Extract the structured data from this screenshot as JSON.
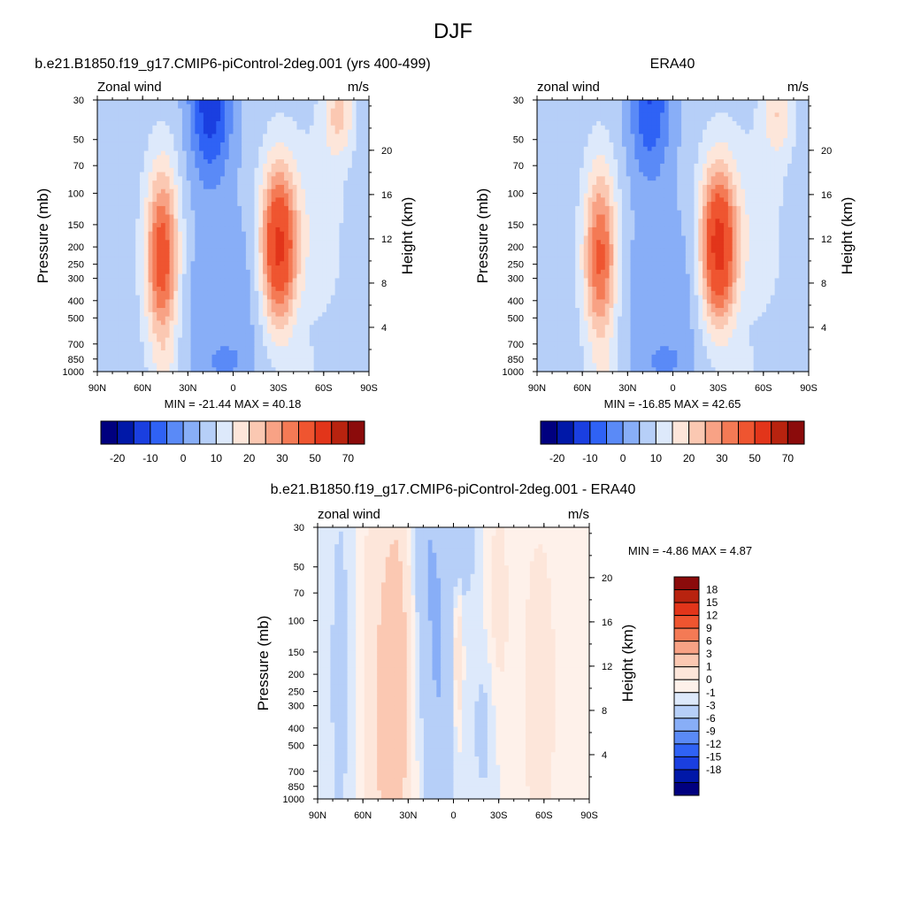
{
  "title": "DJF",
  "colors": {
    "levels": [
      "#00007f",
      "#0018a8",
      "#1a3fe0",
      "#2f62f5",
      "#5a8af7",
      "#88aef7",
      "#b6cff8",
      "#dde9fb",
      "#fde6da",
      "#fbc8b2",
      "#f8a285",
      "#f47a55",
      "#ef5530",
      "#e2351a",
      "#b8230f",
      "#8b0b0b"
    ],
    "diff_levels": [
      "#00007f",
      "#0018a8",
      "#1a3fe0",
      "#2f62f5",
      "#5a8af7",
      "#88aef7",
      "#b6cff8",
      "#dde9fb",
      "#fef1ea",
      "#fde6da",
      "#fbc8b2",
      "#f8a285",
      "#f47a55",
      "#ef5530",
      "#e2351a",
      "#b8230f",
      "#8b0b0b"
    ]
  },
  "chart_data": [
    {
      "type": "heatmap",
      "id": "model",
      "title": "b.e21.B1850.f19_g17.CMIP6-piControl-2deg.001 (yrs 400-499)",
      "left_label": "Zonal wind",
      "right_label": "m/s",
      "ylabel": "Pressure (mb)",
      "y2label": "Height (km)",
      "xticks": [
        "90N",
        "60N",
        "30N",
        "0",
        "30S",
        "60S",
        "90S"
      ],
      "yticks": [
        30,
        50,
        70,
        100,
        150,
        200,
        250,
        300,
        400,
        500,
        700,
        850,
        1000
      ],
      "y2ticks": [
        20,
        16,
        12,
        8,
        4
      ],
      "stats": "MIN = -21.44  MAX =  40.18",
      "min": -21.44,
      "max": 40.18,
      "colorbar_labels": [
        "-20",
        "-10",
        "0",
        "10",
        "20",
        "30",
        "50",
        "70"
      ],
      "jets": [
        {
          "lat": -30,
          "p": 200,
          "max": 40
        },
        {
          "lat": 47,
          "p": 230,
          "max": 33
        }
      ],
      "easterly": {
        "lat": 15,
        "p": 30,
        "min": -21
      }
    },
    {
      "type": "heatmap",
      "id": "era40",
      "title": "ERA40",
      "left_label": "zonal wind",
      "right_label": "m/s",
      "ylabel": "Pressure (mb)",
      "y2label": "Height (km)",
      "xticks": [
        "90N",
        "60N",
        "30N",
        "0",
        "30S",
        "60S",
        "90S"
      ],
      "yticks": [
        30,
        50,
        70,
        100,
        150,
        200,
        250,
        300,
        400,
        500,
        700,
        850,
        1000
      ],
      "y2ticks": [
        20,
        16,
        12,
        8,
        4
      ],
      "stats": "MIN = -16.85  MAX =  42.65",
      "min": -16.85,
      "max": 42.65,
      "colorbar_labels": [
        "-20",
        "-10",
        "0",
        "10",
        "20",
        "30",
        "50",
        "70"
      ],
      "jets": [
        {
          "lat": -30,
          "p": 200,
          "max": 42
        },
        {
          "lat": 48,
          "p": 230,
          "max": 30
        }
      ],
      "easterly": {
        "lat": 15,
        "p": 30,
        "min": -17
      }
    },
    {
      "type": "heatmap",
      "id": "diff",
      "title": "b.e21.B1850.f19_g17.CMIP6-piControl-2deg.001 - ERA40",
      "left_label": "zonal wind",
      "right_label": "m/s",
      "ylabel": "Pressure (mb)",
      "y2label": "Height (km)",
      "xticks": [
        "90N",
        "60N",
        "30N",
        "0",
        "30S",
        "60S",
        "90S"
      ],
      "yticks": [
        30,
        50,
        70,
        100,
        150,
        200,
        250,
        300,
        400,
        500,
        700,
        850,
        1000
      ],
      "y2ticks": [
        20,
        16,
        12,
        8,
        4
      ],
      "stats": "MIN =  -4.86  MAX =   4.87",
      "min": -4.86,
      "max": 4.87,
      "colorbar_labels": [
        "18",
        "15",
        "12",
        "9",
        "6",
        "3",
        "1",
        "0",
        "-1",
        "-3",
        "-6",
        "-9",
        "-12",
        "-15",
        "-18"
      ]
    }
  ]
}
